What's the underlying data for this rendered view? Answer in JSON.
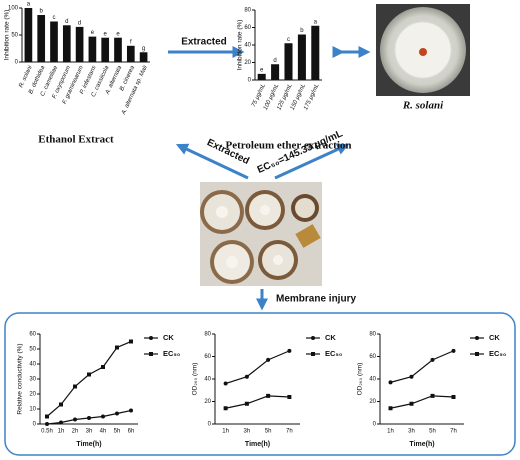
{
  "labels": {
    "extracted_top": "Extracted",
    "pathogen": "R. solani",
    "extracted_arrow": "Extracted",
    "ec50": "EC₅₀=145.33 μg/mL",
    "membrane": "Membrane injury"
  },
  "chart_data": [
    {
      "type": "bar",
      "title": "Ethanol Extract",
      "ylabel": "Inhibition rate (%)",
      "categories": [
        "R. solani",
        "B. dothidea",
        "C. camelliae",
        "F. oxysporum",
        "F. graminearum",
        "P. infestans",
        "C. cassiicola",
        "A. alternata",
        "B. cinerea",
        "A. alternata sp. Mali"
      ],
      "values": [
        100,
        87,
        75,
        68,
        65,
        47,
        45,
        45,
        30,
        18
      ],
      "letters": [
        "a",
        "b",
        "c",
        "d",
        "d",
        "e",
        "e",
        "e",
        "f",
        "g"
      ],
      "color": "#111111",
      "ylim": [
        0,
        100
      ],
      "yticks": [
        0,
        50,
        100
      ]
    },
    {
      "type": "bar",
      "title": "Petroleum ether extraction",
      "ylabel": "Inhibition rate (%)",
      "categories": [
        "75 μg/mL",
        "100 μg/mL",
        "125 μg/mL",
        "150 μg/mL",
        "175 μg/mL"
      ],
      "values": [
        7,
        18,
        42,
        52,
        62
      ],
      "letters": [
        "e",
        "d",
        "c",
        "b",
        "a"
      ],
      "color": "#111111",
      "ylim": [
        0,
        80
      ],
      "yticks": [
        0,
        20,
        40,
        60,
        80
      ]
    },
    {
      "type": "line",
      "ylabel": "Relative conductivity (%)",
      "xlabel": "Time(h)",
      "categories": [
        "0.5h",
        "1h",
        "2h",
        "3h",
        "4h",
        "5h",
        "6h"
      ],
      "series": [
        {
          "name": "CK",
          "color": "#111111",
          "marker": "circle",
          "values": [
            0,
            1,
            3,
            4,
            5,
            7,
            9
          ]
        },
        {
          "name": "EC₅₀",
          "color": "#111111",
          "marker": "square",
          "values": [
            5,
            13,
            25,
            33,
            38,
            51,
            55
          ]
        }
      ],
      "ylim": [
        0,
        60
      ],
      "yticks": [
        0,
        10,
        20,
        30,
        40,
        50,
        60
      ]
    },
    {
      "type": "line",
      "ylabel": "OD₂₆₀ (nm)",
      "xlabel": "Time(h)",
      "categories": [
        "1h",
        "3h",
        "5h",
        "7h"
      ],
      "series": [
        {
          "name": "CK",
          "color": "#111111",
          "marker": "circle",
          "values": [
            36,
            42,
            57,
            65
          ]
        },
        {
          "name": "EC₅₀",
          "color": "#111111",
          "marker": "square",
          "values": [
            14,
            18,
            25,
            24
          ]
        }
      ],
      "ylim": [
        0,
        80
      ],
      "yticks": [
        0,
        20,
        40,
        60,
        80
      ]
    },
    {
      "type": "line",
      "ylabel": "OD₂₆₀ (nm)",
      "xlabel": "Time(h)",
      "categories": [
        "1h",
        "3h",
        "5h",
        "7h"
      ],
      "series": [
        {
          "name": "CK",
          "color": "#111111",
          "marker": "circle",
          "values": [
            37,
            42,
            57,
            65
          ]
        },
        {
          "name": "EC₅₀",
          "color": "#111111",
          "marker": "square",
          "values": [
            14,
            18,
            25,
            24
          ]
        }
      ],
      "ylim": [
        0,
        80
      ],
      "yticks": [
        0,
        20,
        40,
        60,
        80
      ]
    }
  ]
}
